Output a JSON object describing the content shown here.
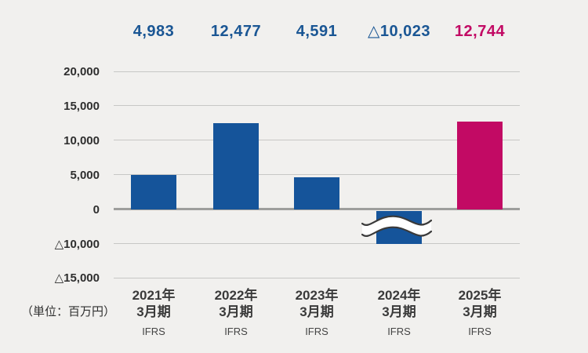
{
  "chart_data": {
    "type": "bar",
    "title": "",
    "xlabel": "",
    "ylabel": "",
    "unit_label": "（単位：百万円）",
    "categories": [
      "2021年3月期",
      "2022年3月期",
      "2023年3月期",
      "2024年3月期",
      "2025年3月期"
    ],
    "category_lines": [
      {
        "year": "2021年",
        "period": "3月期",
        "standard": "IFRS"
      },
      {
        "year": "2022年",
        "period": "3月期",
        "standard": "IFRS"
      },
      {
        "year": "2023年",
        "period": "3月期",
        "standard": "IFRS"
      },
      {
        "year": "2024年",
        "period": "3月期",
        "standard": "IFRS"
      },
      {
        "year": "2025年",
        "period": "3月期",
        "standard": "IFRS"
      }
    ],
    "values": [
      4983,
      12477,
      4591,
      -10023,
      12744
    ],
    "value_labels": [
      "4,983",
      "12,477",
      "4,591",
      "△10,023",
      "12,744"
    ],
    "bar_colors": [
      "#15549a",
      "#15549a",
      "#15549a",
      "#15549a",
      "#c20a64"
    ],
    "value_label_colors": [
      "#1a5694",
      "#1a5694",
      "#1a5694",
      "#1a5694",
      "#c20a64"
    ],
    "y_ticks": [
      "20,000",
      "15,000",
      "10,000",
      "5,000",
      "0",
      "△10,000",
      "△15,000"
    ],
    "y_axis": {
      "max": 20000,
      "min_displayed": -15000,
      "tick_interval": 5000,
      "skipped_tick": "△5,000"
    },
    "axis_break": {
      "present": true,
      "between": [
        "0",
        "△10,000"
      ],
      "bar_index": 3
    },
    "negative_notation": "△",
    "grid": true,
    "legend": false
  }
}
